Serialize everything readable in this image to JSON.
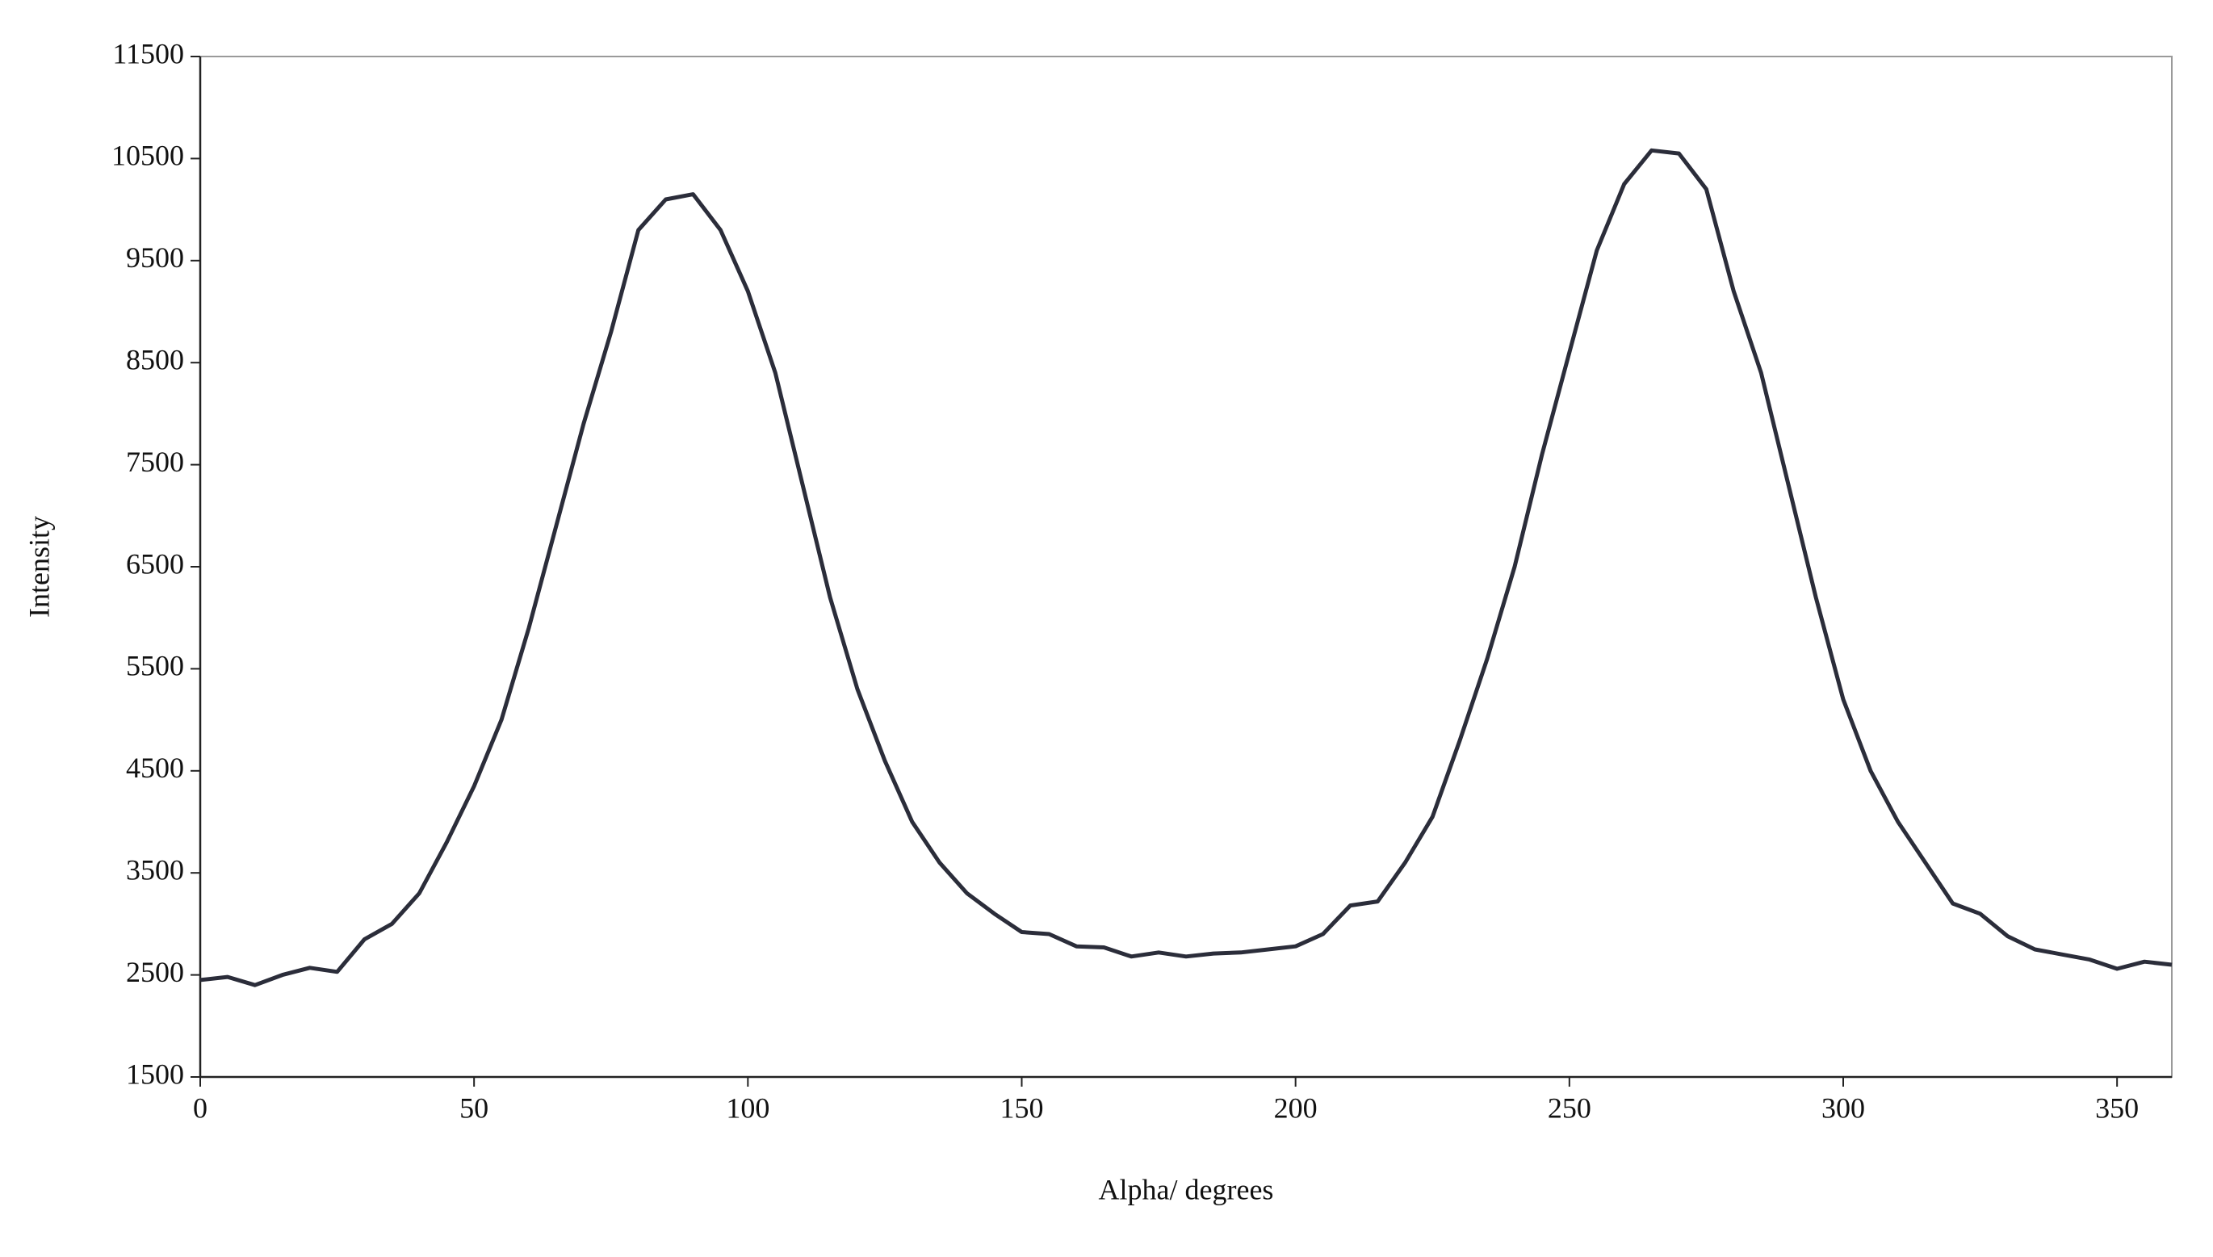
{
  "chart_data": {
    "type": "line",
    "x_label": "Alpha/ degrees",
    "y_label": "Intensity",
    "x": [
      0,
      5,
      10,
      15,
      20,
      25,
      30,
      35,
      40,
      45,
      50,
      55,
      60,
      65,
      70,
      75,
      80,
      85,
      90,
      95,
      100,
      105,
      110,
      115,
      120,
      125,
      130,
      135,
      140,
      145,
      150,
      155,
      160,
      165,
      170,
      175,
      180,
      185,
      190,
      195,
      200,
      205,
      210,
      215,
      220,
      225,
      230,
      235,
      240,
      245,
      250,
      255,
      260,
      265,
      270,
      275,
      280,
      285,
      290,
      295,
      300,
      305,
      310,
      315,
      320,
      325,
      330,
      335,
      340,
      345,
      350,
      355,
      360
    ],
    "series": [
      {
        "color": "#2b2d3a",
        "values": [
          2450,
          2480,
          2400,
          2500,
          2570,
          2530,
          2850,
          3000,
          3300,
          3800,
          4350,
          5000,
          5900,
          6900,
          7900,
          8800,
          9800,
          10100,
          10150,
          9800,
          9200,
          8400,
          7300,
          6200,
          5300,
          4600,
          4000,
          3600,
          3300,
          3100,
          2920,
          2900,
          2780,
          2770,
          2680,
          2720,
          2680,
          2710,
          2720,
          2750,
          2780,
          2900,
          3180,
          3220,
          3600,
          4050,
          4800,
          5600,
          6500,
          7600,
          8600,
          9600,
          10250,
          10580,
          10550,
          10200,
          9200,
          8400,
          7300,
          6200,
          5200,
          4500,
          4000,
          3600,
          3200,
          3100,
          2880,
          2750,
          2700,
          2650,
          2560,
          2630,
          2600
        ]
      }
    ],
    "xlim": [
      0,
      360
    ],
    "ylim": [
      1500,
      11500
    ],
    "xticks": [
      0,
      50,
      100,
      150,
      200,
      250,
      300,
      350
    ],
    "yticks": [
      1500,
      2500,
      3500,
      4500,
      5500,
      6500,
      7500,
      8500,
      9500,
      10500,
      11500
    ],
    "grid": false
  }
}
